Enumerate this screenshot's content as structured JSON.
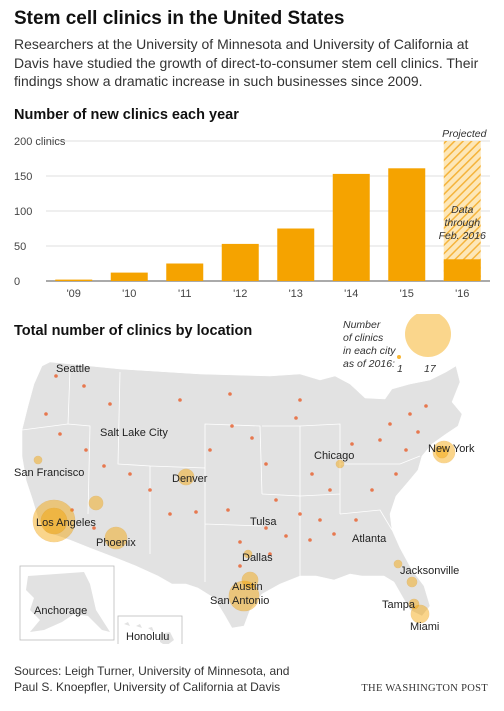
{
  "title": "Stem cell clinics in the United States",
  "subtitle": "Researchers at the University of Minnesota and University of California at Davis have studied the growth of direct-to-consumer stem cell clinics. Their findings show a dramatic increase in such businesses since 2009.",
  "colors": {
    "bar": "#f5a300",
    "bubble": "#f5a300",
    "bubble_dark": "#e8541e",
    "land": "#e2e2e2",
    "border": "#ffffff"
  },
  "chart_data": [
    {
      "type": "bar",
      "title": "Number of new clinics each year",
      "categories": [
        "'09",
        "'10",
        "'11",
        "'12",
        "'13",
        "'14",
        "'15",
        "'16"
      ],
      "values": [
        2,
        12,
        25,
        53,
        75,
        153,
        161,
        31
      ],
      "ylim": [
        0,
        200
      ],
      "yticks": [
        0,
        50,
        100,
        150,
        200
      ],
      "ytick_labels": [
        "0",
        "50",
        "100",
        "150",
        "200 clinics"
      ],
      "projected_label": "Projected",
      "projected_category": "'16",
      "projected_value": 200,
      "note": [
        "Data",
        "through",
        "Feb. 2016"
      ]
    },
    {
      "type": "scatter",
      "title": "Total number of clinics by location",
      "legend": {
        "title": [
          "Number",
          "of clinics",
          "in each city",
          "as of 2016:"
        ],
        "min_label": "1",
        "max_label": "17"
      },
      "cities": [
        "Seattle",
        "San Francisco",
        "Salt Lake City",
        "Denver",
        "Los Angeles",
        "Phoenix",
        "Tulsa",
        "Dallas",
        "Austin",
        "San Antonio",
        "Chicago",
        "Atlanta",
        "New York",
        "Jacksonville",
        "Tampa",
        "Miami"
      ],
      "insets": [
        "Anchorage",
        "Honolulu"
      ]
    }
  ],
  "footer": {
    "source_line1": "Sources: Leigh Turner, University of Minnesota, and",
    "source_line2": "Paul S. Knoepfler, University of California at Davis",
    "credit": "THE WASHINGTON POST"
  }
}
